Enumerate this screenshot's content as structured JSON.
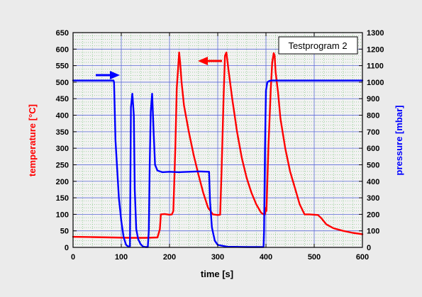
{
  "chart_data": {
    "type": "line",
    "title": "Testprogram 2",
    "xlabel": "time [s]",
    "ylabel_left": "temperature [°C]",
    "ylabel_right": "pressure [mbar]",
    "xlim": [
      0,
      600
    ],
    "ylim_left": [
      0,
      650
    ],
    "ylim_right": [
      0,
      1300
    ],
    "x_ticks": [
      0,
      100,
      200,
      300,
      400,
      500,
      600
    ],
    "y_left_ticks": [
      0,
      50,
      100,
      150,
      200,
      250,
      300,
      350,
      400,
      450,
      500,
      550,
      600,
      650
    ],
    "y_right_ticks": [
      0,
      100,
      200,
      300,
      400,
      500,
      600,
      700,
      800,
      900,
      1000,
      1100,
      1200,
      1300
    ],
    "grid": true,
    "colors": {
      "temperature": "#ff0000",
      "pressure": "#0000ff",
      "major_grid": "#5a6bd6",
      "minor_grid": "#6fbf6f",
      "plot_bg": "#f2f2f2",
      "page_bg": "#ebebeb"
    },
    "series": [
      {
        "name": "temperature",
        "axis": "left",
        "x": [
          0,
          40,
          80,
          120,
          150,
          175,
          180,
          182,
          190,
          200,
          205,
          208,
          212,
          215,
          220,
          222,
          225,
          230,
          240,
          250,
          260,
          270,
          280,
          290,
          300,
          305,
          308,
          312,
          315,
          318,
          322,
          330,
          340,
          350,
          360,
          370,
          380,
          390,
          395,
          398,
          400,
          401,
          405,
          410,
          413,
          416,
          418,
          420,
          425,
          430,
          440,
          450,
          460,
          470,
          480,
          490,
          500,
          508,
          515,
          525,
          540,
          560,
          580,
          600
        ],
        "y": [
          32,
          31,
          30,
          29,
          29,
          30,
          55,
          100,
          101,
          99,
          100,
          110,
          300,
          480,
          590,
          560,
          500,
          430,
          350,
          280,
          220,
          165,
          120,
          100,
          98,
          99,
          230,
          450,
          580,
          590,
          540,
          450,
          350,
          270,
          210,
          165,
          130,
          105,
          100,
          100,
          120,
          110,
          300,
          480,
          560,
          588,
          580,
          530,
          470,
          390,
          300,
          230,
          180,
          130,
          100,
          100,
          99,
          98,
          88,
          70,
          58,
          50,
          44,
          40
        ]
      },
      {
        "name": "pressure",
        "axis": "right",
        "x": [
          0,
          50,
          84,
          85,
          88,
          95,
          100,
          105,
          110,
          113,
          116,
          118,
          120,
          123,
          126,
          128,
          131,
          135,
          140,
          145,
          150,
          155,
          157,
          159,
          161,
          164,
          167,
          170,
          175,
          185,
          200,
          220,
          260,
          282,
          284,
          288,
          294,
          300,
          320,
          360,
          395,
          396,
          398,
          400,
          403,
          407,
          412,
          430,
          480,
          520,
          560,
          600
        ],
        "y": [
          1010,
          1010,
          1010,
          1000,
          650,
          300,
          160,
          60,
          15,
          8,
          5,
          5,
          850,
          930,
          800,
          350,
          110,
          50,
          20,
          5,
          2,
          2,
          100,
          500,
          820,
          930,
          700,
          500,
          465,
          455,
          458,
          455,
          460,
          458,
          280,
          120,
          40,
          15,
          4,
          2,
          2,
          100,
          600,
          950,
          1000,
          1008,
          1010,
          1010,
          1010,
          1010,
          1010,
          1010
        ]
      }
    ]
  },
  "annotations": {
    "temperature_arrow": "left-pointing red arrow",
    "pressure_arrow": "right-pointing blue arrow"
  }
}
